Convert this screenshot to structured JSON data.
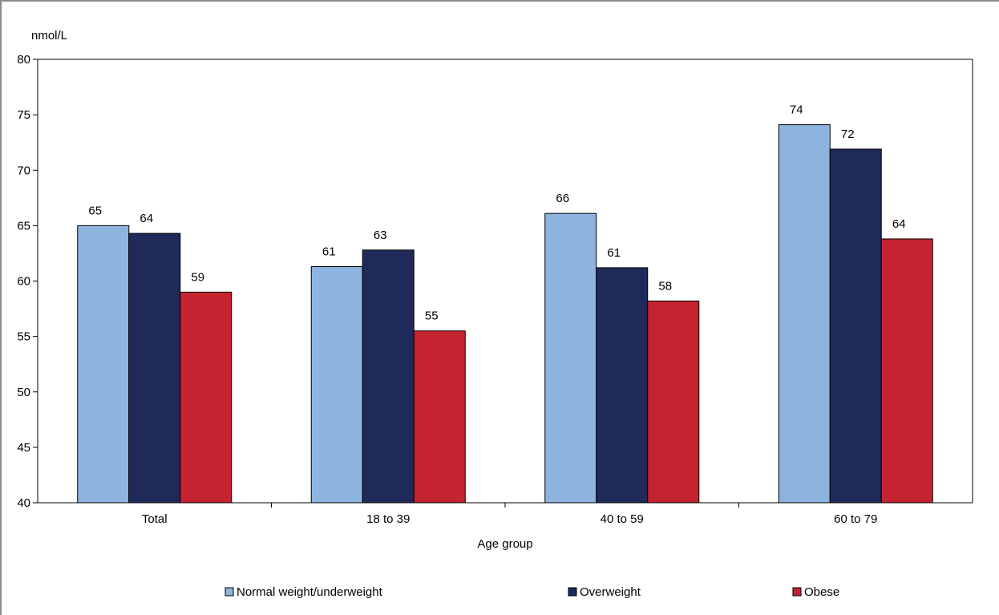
{
  "chart_data": {
    "type": "bar",
    "title": "",
    "ylabel": "nmol/L",
    "xlabel": "Age group",
    "ylim": [
      40,
      80
    ],
    "yticks": [
      40,
      45,
      50,
      55,
      60,
      65,
      70,
      75,
      80
    ],
    "grid": false,
    "legend_position": "bottom",
    "categories": [
      "Total",
      "18 to 39",
      "40 to 59",
      "60 to 79"
    ],
    "series": [
      {
        "name": "Normal weight/underweight",
        "color": "#8db4df",
        "values": [
          65,
          61.3,
          66.1,
          74.1
        ],
        "labels": [
          "65",
          "61",
          "66",
          "74"
        ]
      },
      {
        "name": "Overweight",
        "color": "#1f2a5a",
        "values": [
          64.3,
          62.8,
          61.2,
          71.9
        ],
        "labels": [
          "64",
          "63",
          "61",
          "72"
        ]
      },
      {
        "name": "Obese",
        "color": "#c52330",
        "values": [
          59,
          55.5,
          58.2,
          63.8
        ],
        "labels": [
          "59",
          "55",
          "58",
          "64"
        ]
      }
    ]
  }
}
